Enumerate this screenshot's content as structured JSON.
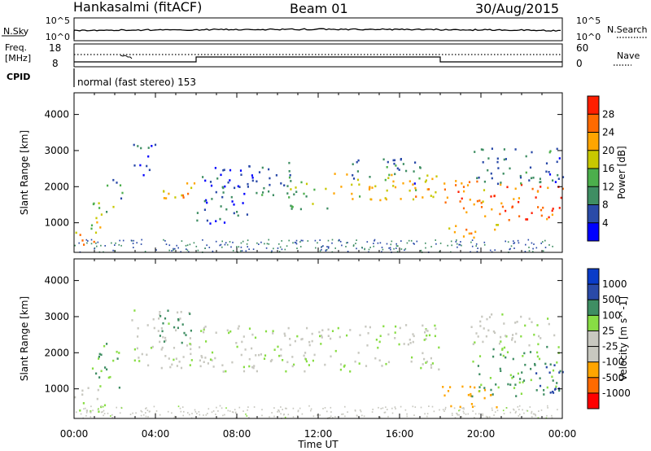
{
  "header": {
    "radar": "Hankasalmi (fitACF)",
    "beam": "Beam 01",
    "date": "30/Aug/2015"
  },
  "side_labels": {
    "nsky": "N.Sky",
    "nsky_top": "10^5",
    "nsky_bottom": "10^0",
    "nsearch": "N.Search",
    "nsearch_top": "10^5",
    "nsearch_bottom": "10^0",
    "freq_line1": "Freq.",
    "freq_line2": "[MHz]",
    "freq_top": "18",
    "freq_bottom": "8",
    "nave": "Nave",
    "nave_top": "60",
    "nave_bottom": "0",
    "cpid": "CPID",
    "cpid_text": "normal (fast stereo) 153"
  },
  "axes": {
    "ylabel": "Slant Range [km]",
    "xlabel": "Time UT"
  },
  "colors": {
    "power": [
      "#0000ff",
      "#2a4aa8",
      "#3f8e63",
      "#4caf4c",
      "#c8c800",
      "#ffa500",
      "#ff6a00",
      "#ff1e00"
    ],
    "velocity": [
      "#ff0000",
      "#ff6a00",
      "#ffa500",
      "#c8c8c0",
      "#c8c8c0",
      "#88dd44",
      "#3f8e63",
      "#2a4aa8",
      "#0a3cc8"
    ]
  },
  "chart_data": [
    {
      "type": "heatmap",
      "name": "power",
      "xlabel": "Time UT",
      "ylabel": "Slant Range [km]",
      "xlim": [
        "00:00",
        "24:00"
      ],
      "ylim": [
        180,
        4600
      ],
      "x_ticks": [
        "00:00",
        "04:00",
        "08:00",
        "12:00",
        "16:00",
        "20:00",
        "00:00"
      ],
      "y_ticks": [
        1000,
        2000,
        3000,
        4000
      ],
      "colorbar": {
        "label": "Power [dB]",
        "ticks": [
          4,
          8,
          12,
          16,
          20,
          24,
          28
        ],
        "range": [
          0,
          32
        ]
      },
      "regions": [
        {
          "t0": 0.0,
          "t1": 1.0,
          "r0": 300,
          "r1": 700,
          "value": 26
        },
        {
          "t0": 0.0,
          "t1": 1.3,
          "r0": 700,
          "r1": 1100,
          "value": 18
        },
        {
          "t0": 0.8,
          "t1": 2.0,
          "r0": 1100,
          "r1": 1700,
          "value": 14
        },
        {
          "t0": 1.5,
          "t1": 2.4,
          "r0": 1700,
          "r1": 2300,
          "value": 9
        },
        {
          "t0": 2.8,
          "t1": 4.0,
          "r0": 2300,
          "r1": 3200,
          "value": 6
        },
        {
          "t0": 4.0,
          "t1": 5.9,
          "r0": 1600,
          "r1": 2200,
          "value": 21
        },
        {
          "t0": 6.0,
          "t1": 8.5,
          "r0": 1000,
          "r1": 2700,
          "value": 6
        },
        {
          "t0": 8.5,
          "t1": 11.0,
          "r0": 1700,
          "r1": 2700,
          "value": 8
        },
        {
          "t0": 10.5,
          "t1": 12.5,
          "r0": 1400,
          "r1": 2200,
          "value": 15
        },
        {
          "t0": 12.5,
          "t1": 18.0,
          "r0": 1600,
          "r1": 2400,
          "value": 20
        },
        {
          "t0": 13.5,
          "t1": 17.0,
          "r0": 2100,
          "r1": 2800,
          "value": 8
        },
        {
          "t0": 18.0,
          "t1": 20.5,
          "r0": 1200,
          "r1": 2200,
          "value": 24
        },
        {
          "t0": 18.2,
          "t1": 21.0,
          "r0": 600,
          "r1": 1000,
          "value": 22
        },
        {
          "t0": 20.5,
          "t1": 24.0,
          "r0": 1100,
          "r1": 2100,
          "value": 27
        },
        {
          "t0": 19.5,
          "t1": 24.0,
          "r0": 2100,
          "r1": 3100,
          "value": 8
        }
      ]
    },
    {
      "type": "heatmap",
      "name": "velocity",
      "xlabel": "Time UT",
      "ylabel": "Slant Range [km]",
      "xlim": [
        "00:00",
        "24:00"
      ],
      "ylim": [
        180,
        4600
      ],
      "x_ticks": [
        "00:00",
        "04:00",
        "08:00",
        "12:00",
        "16:00",
        "20:00",
        "00:00"
      ],
      "y_ticks": [
        1000,
        2000,
        3000,
        4000
      ],
      "colorbar": {
        "label": "Velocity [m s^-1]",
        "ticks": [
          "1000",
          "500",
          "100",
          "25",
          "-25",
          "-100",
          "-500",
          "-1000"
        ]
      },
      "regions": [
        {
          "t0": 0.0,
          "t1": 1.5,
          "r0": 300,
          "r1": 1100,
          "value": 0
        },
        {
          "t0": 0.8,
          "t1": 2.2,
          "r0": 1000,
          "r1": 2300,
          "value": 120
        },
        {
          "t0": 2.8,
          "t1": 5.8,
          "r0": 1600,
          "r1": 3200,
          "value": 0
        },
        {
          "t0": 4.0,
          "t1": 5.8,
          "r0": 2300,
          "r1": 3200,
          "value": 150
        },
        {
          "t0": 6.0,
          "t1": 18.0,
          "r0": 1500,
          "r1": 2800,
          "value": 0
        },
        {
          "t0": 18.0,
          "t1": 21.0,
          "r0": 500,
          "r1": 1100,
          "value": -300
        },
        {
          "t0": 19.5,
          "t1": 24.0,
          "r0": 800,
          "r1": 2200,
          "value": 120
        },
        {
          "t0": 22.5,
          "t1": 24.0,
          "r0": 900,
          "r1": 1700,
          "value": 700
        },
        {
          "t0": 19.5,
          "t1": 24.0,
          "r0": 2200,
          "r1": 3100,
          "value": 0
        }
      ]
    }
  ]
}
